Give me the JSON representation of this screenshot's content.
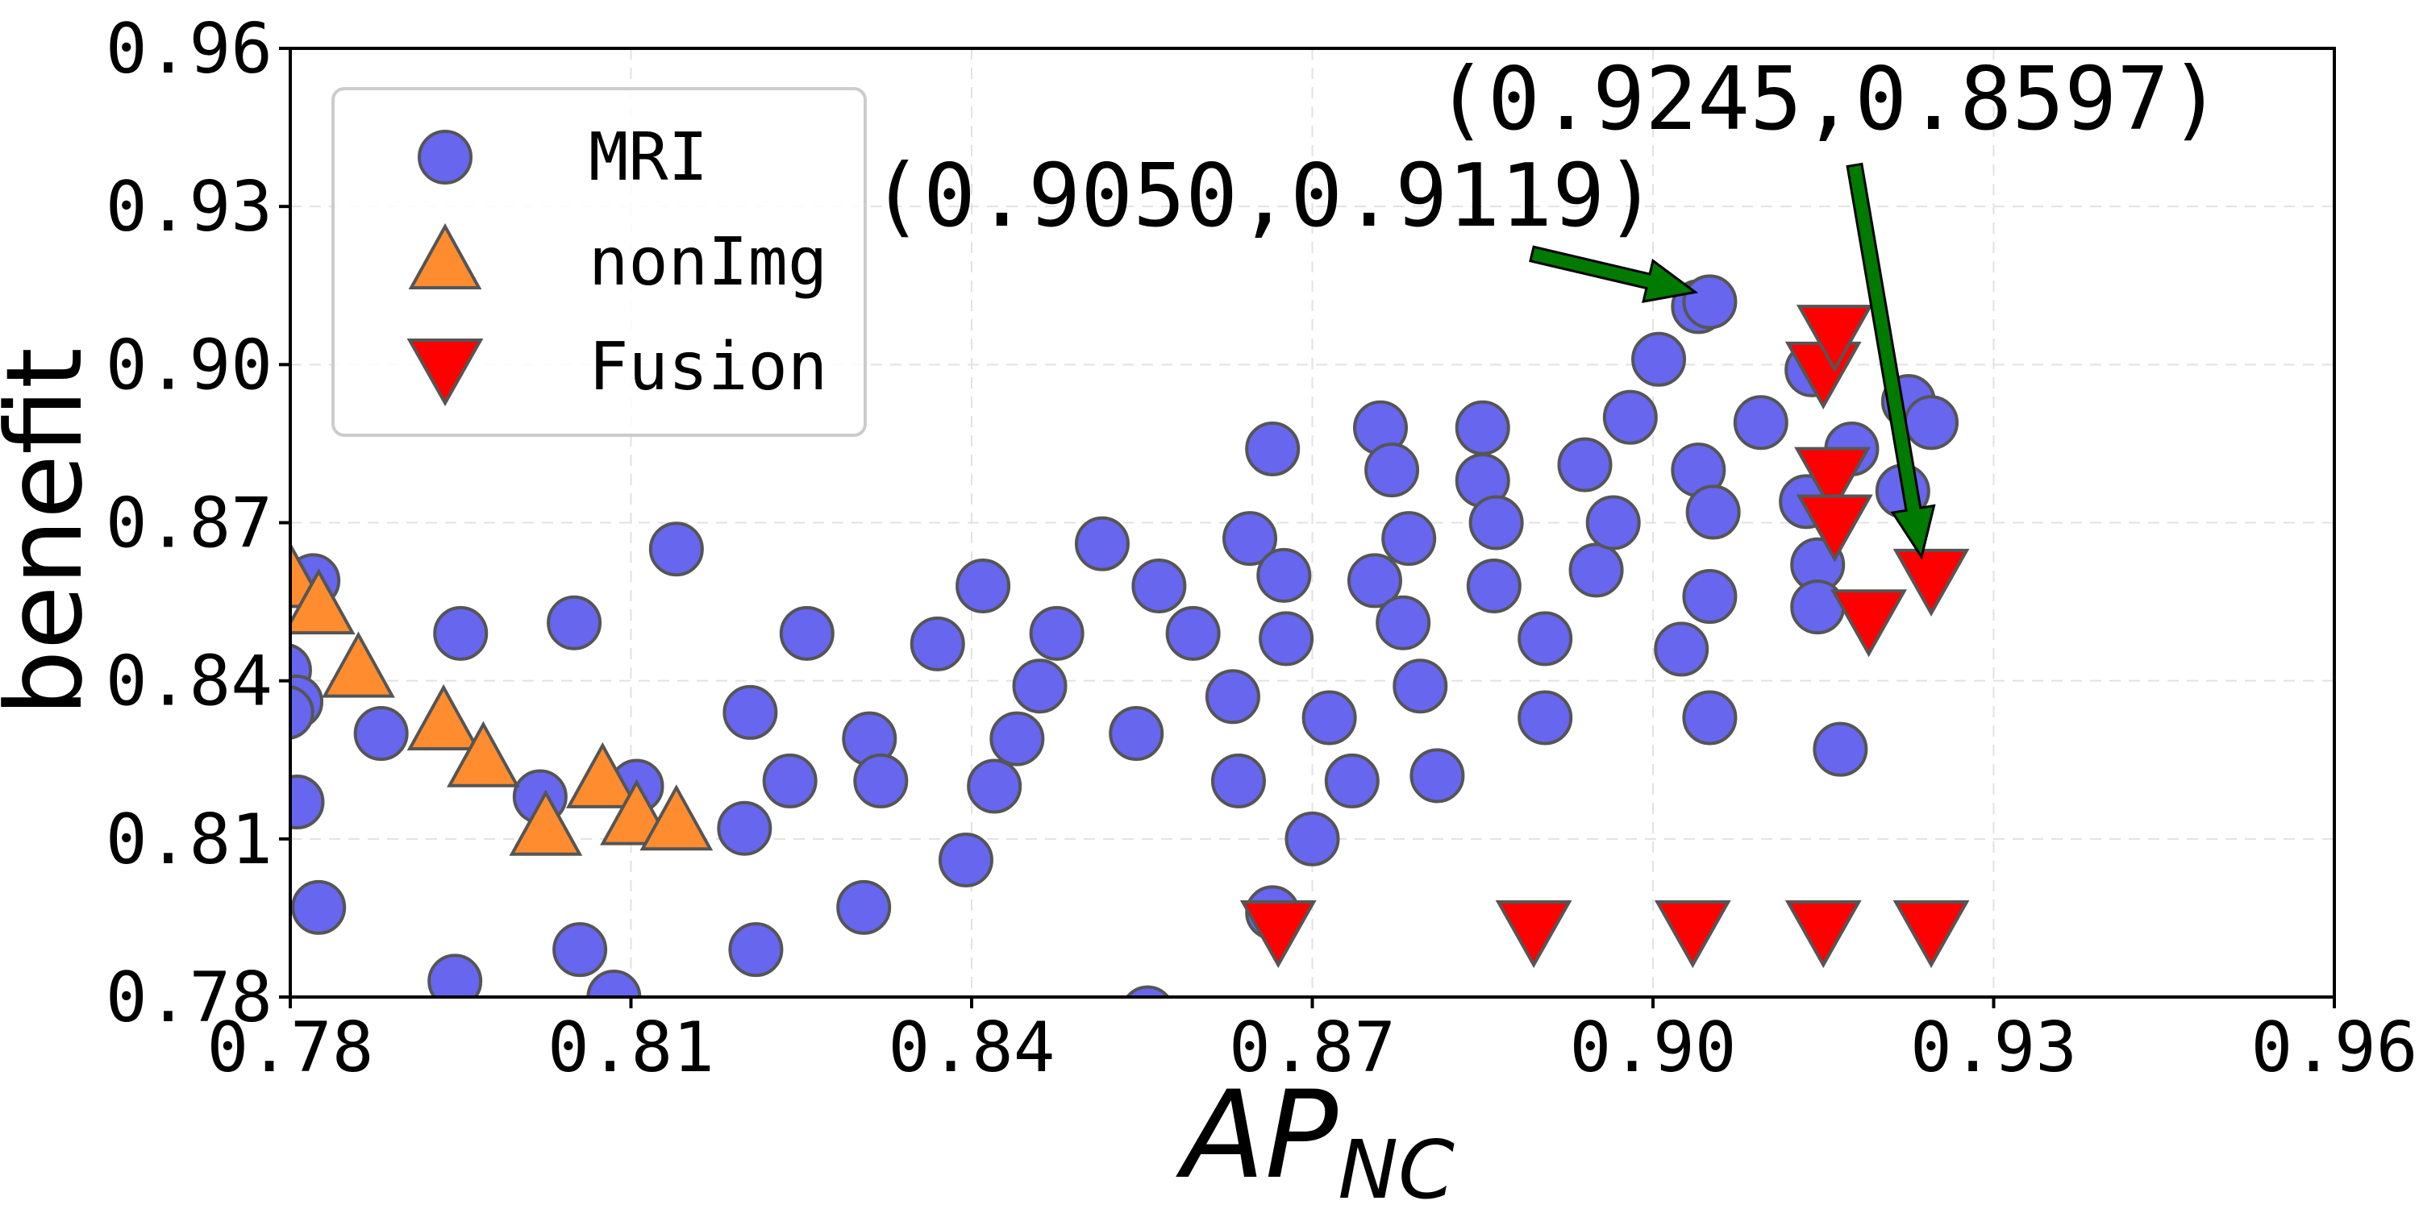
{
  "chart_data": {
    "type": "scatter",
    "xlabel": "AP",
    "xlabel_sub": "NC",
    "ylabel": "benefit",
    "xlim": [
      0.78,
      0.96
    ],
    "ylim": [
      0.78,
      0.96
    ],
    "x_ticks": [
      "0.78",
      "0.81",
      "0.84",
      "0.87",
      "0.90",
      "0.93",
      "0.96"
    ],
    "y_ticks": [
      "0.78",
      "0.81",
      "0.84",
      "0.87",
      "0.90",
      "0.93",
      "0.96"
    ],
    "grid": true,
    "legend_position": "top-left",
    "series": [
      {
        "name": "MRI",
        "marker": "circle",
        "color": "#6666ee",
        "edge_color": "#555555",
        "points": [
          [
            0.782,
            0.859
          ],
          [
            0.7795,
            0.842
          ],
          [
            0.7805,
            0.836
          ],
          [
            0.7797,
            0.834
          ],
          [
            0.7806,
            0.817
          ],
          [
            0.7825,
            0.797
          ],
          [
            0.788,
            0.83
          ],
          [
            0.795,
            0.849
          ],
          [
            0.7945,
            0.783
          ],
          [
            0.802,
            0.818
          ],
          [
            0.805,
            0.851
          ],
          [
            0.8055,
            0.789
          ],
          [
            0.8085,
            0.78
          ],
          [
            0.8105,
            0.82
          ],
          [
            0.814,
            0.865
          ],
          [
            0.8205,
            0.834
          ],
          [
            0.82,
            0.812
          ],
          [
            0.821,
            0.789
          ],
          [
            0.824,
            0.821
          ],
          [
            0.8255,
            0.849
          ],
          [
            0.831,
            0.829
          ],
          [
            0.832,
            0.821
          ],
          [
            0.8305,
            0.797
          ],
          [
            0.837,
            0.847
          ],
          [
            0.8395,
            0.806
          ],
          [
            0.841,
            0.858
          ],
          [
            0.842,
            0.82
          ],
          [
            0.844,
            0.829
          ],
          [
            0.846,
            0.839
          ],
          [
            0.8475,
            0.849
          ],
          [
            0.8515,
            0.866
          ],
          [
            0.8545,
            0.83
          ],
          [
            0.8555,
            0.777
          ],
          [
            0.8565,
            0.858
          ],
          [
            0.8595,
            0.849
          ],
          [
            0.8645,
            0.867
          ],
          [
            0.863,
            0.837
          ],
          [
            0.8635,
            0.821
          ],
          [
            0.8665,
            0.884
          ],
          [
            0.8665,
            0.796
          ],
          [
            0.8675,
            0.86
          ],
          [
            0.8677,
            0.848
          ],
          [
            0.87,
            0.81
          ],
          [
            0.8715,
            0.833
          ],
          [
            0.8735,
            0.821
          ],
          [
            0.876,
            0.888
          ],
          [
            0.8755,
            0.859
          ],
          [
            0.877,
            0.88
          ],
          [
            0.878,
            0.851
          ],
          [
            0.8785,
            0.867
          ],
          [
            0.8795,
            0.839
          ],
          [
            0.881,
            0.822
          ],
          [
            0.885,
            0.888
          ],
          [
            0.885,
            0.878
          ],
          [
            0.886,
            0.858
          ],
          [
            0.8862,
            0.87
          ],
          [
            0.8905,
            0.848
          ],
          [
            0.8905,
            0.833
          ],
          [
            0.894,
            0.881
          ],
          [
            0.895,
            0.861
          ],
          [
            0.8965,
            0.87
          ],
          [
            0.898,
            0.89
          ],
          [
            0.9005,
            0.901
          ],
          [
            0.9025,
            0.846
          ],
          [
            0.904,
            0.911
          ],
          [
            0.904,
            0.88
          ],
          [
            0.905,
            0.9119
          ],
          [
            0.9053,
            0.872
          ],
          [
            0.905,
            0.856
          ],
          [
            0.905,
            0.833
          ],
          [
            0.9095,
            0.889
          ],
          [
            0.9135,
            0.874
          ],
          [
            0.914,
            0.899
          ],
          [
            0.9145,
            0.862
          ],
          [
            0.9145,
            0.854
          ],
          [
            0.9165,
            0.827
          ],
          [
            0.9175,
            0.884
          ],
          [
            0.922,
            0.876
          ],
          [
            0.9225,
            0.893
          ],
          [
            0.9245,
            0.889
          ]
        ]
      },
      {
        "name": "nonImg",
        "marker": "triangle-up",
        "color": "#ff8c2e",
        "edge_color": "#555555",
        "points": [
          [
            0.78,
            0.859
          ],
          [
            0.7825,
            0.854
          ],
          [
            0.786,
            0.842
          ],
          [
            0.7935,
            0.832
          ],
          [
            0.797,
            0.825
          ],
          [
            0.8025,
            0.812
          ],
          [
            0.8075,
            0.821
          ],
          [
            0.8105,
            0.814
          ],
          [
            0.814,
            0.813
          ]
        ]
      },
      {
        "name": "Fusion",
        "marker": "triangle-down",
        "color": "#ff0000",
        "edge_color": "#555555",
        "points": [
          [
            0.867,
            0.793
          ],
          [
            0.8895,
            0.793
          ],
          [
            0.9035,
            0.793
          ],
          [
            0.915,
            0.793
          ],
          [
            0.9245,
            0.793
          ],
          [
            0.915,
            0.899
          ],
          [
            0.916,
            0.906
          ],
          [
            0.9158,
            0.879
          ],
          [
            0.916,
            0.87
          ],
          [
            0.919,
            0.852
          ],
          [
            0.9245,
            0.8597
          ]
        ]
      }
    ],
    "annotations": [
      {
        "text": "(0.9050,0.9119)",
        "target": [
          0.905,
          0.9119
        ],
        "arrow_color": "#007a00"
      },
      {
        "text": "(0.9245,0.8597)",
        "target": [
          0.9245,
          0.8597
        ],
        "arrow_color": "#007a00"
      }
    ]
  }
}
